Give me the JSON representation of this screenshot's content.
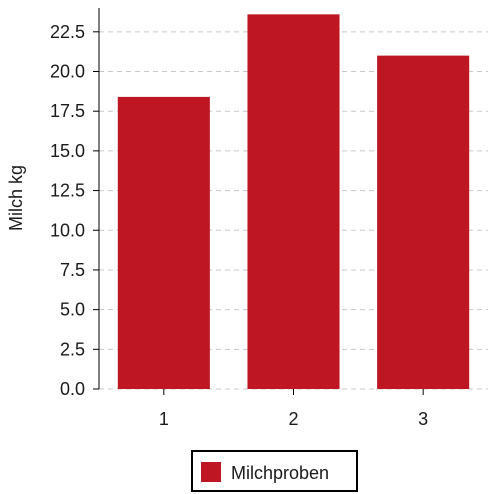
{
  "chart_data": {
    "type": "bar",
    "categories": [
      "1",
      "2",
      "3"
    ],
    "series": [
      {
        "name": "Milchproben",
        "values": [
          18.4,
          23.6,
          21.0
        ],
        "color": "#be1622"
      }
    ],
    "title": "",
    "xlabel": "",
    "ylabel": "Milch kg",
    "ylim": [
      0,
      24
    ],
    "yticks": [
      "0.0",
      "2.5",
      "5.0",
      "7.5",
      "10.0",
      "12.5",
      "15.0",
      "17.5",
      "20.0",
      "22.5"
    ],
    "grid": true,
    "legend_placement": "bottom-center"
  }
}
